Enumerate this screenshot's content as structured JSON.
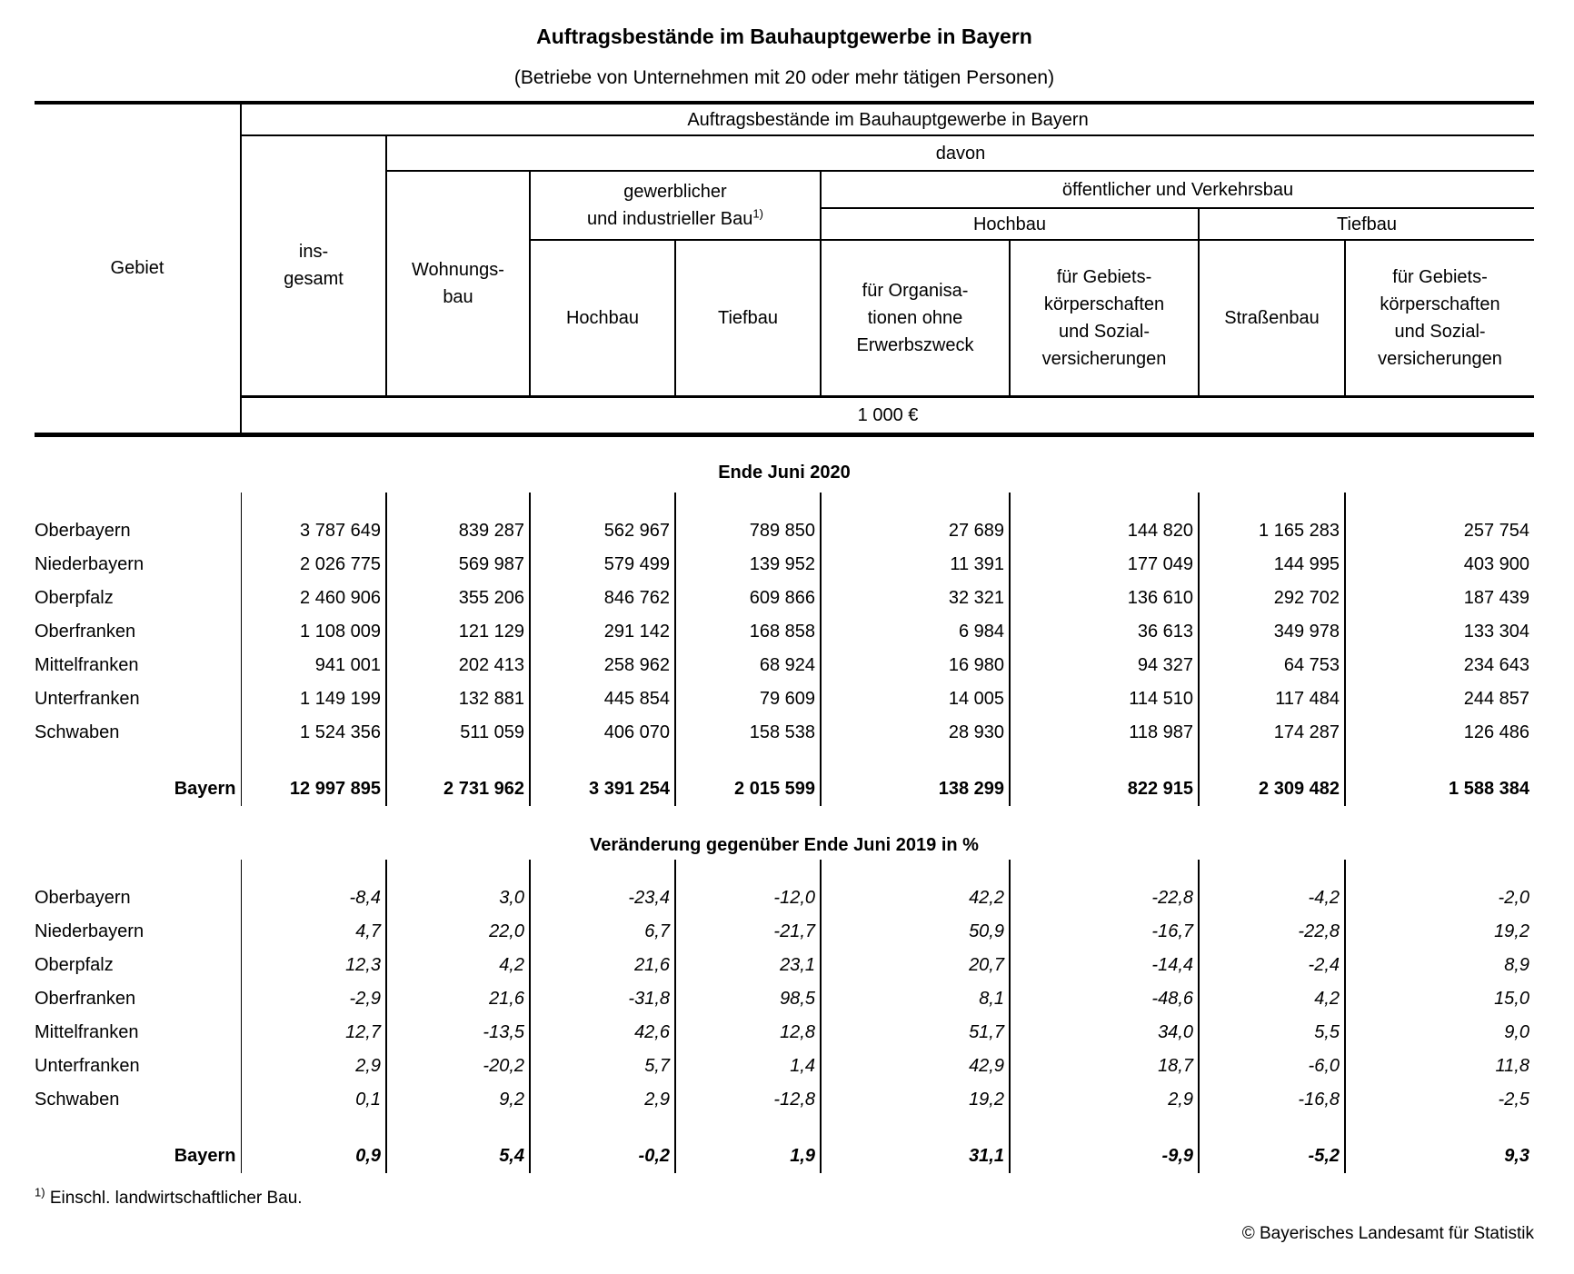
{
  "title": "Auftragsbestände im Bauhauptgewerbe in Bayern",
  "subtitle": "(Betriebe von Unternehmen mit 20 oder mehr tätigen Personen)",
  "header": {
    "gebiet": "Gebiet",
    "span_title": "Auftragsbestände im Bauhauptgewerbe in Bayern",
    "davon": "davon",
    "insgesamt": "ins-\ngesamt",
    "wohnungsbau": "Wohnungs-\nbau",
    "gewerblich": "gewerblicher\nund industrieller Bau",
    "gewerblich_footnote_marker": "1)",
    "oeffentlich": "öffentlicher und Verkehrsbau",
    "hochbau_group": "Hochbau",
    "tiefbau_group": "Tiefbau",
    "leaf_hochbau": "Hochbau",
    "leaf_tiefbau": "Tiefbau",
    "leaf_organisationen": "für Organisa-\ntionen ohne\nErwerbszweck",
    "leaf_gebietskoerperschaften_hochbau": "für Gebiets-\nkörperschaften\nund Sozial-\nversicherungen",
    "leaf_strassenbau": "Straßenbau",
    "leaf_gebietskoerperschaften_tiefbau": "für Gebiets-\nkörperschaften\nund Sozial-\nversicherungen",
    "unit": "1 000 €"
  },
  "sections": [
    {
      "title": "Ende Juni 2020",
      "value_style": "normal",
      "rows": [
        {
          "region": "Oberbayern",
          "bold": false,
          "values": [
            "3 787 649",
            "839 287",
            "562 967",
            "789 850",
            "27 689",
            "144 820",
            "1 165 283",
            "257 754"
          ]
        },
        {
          "region": "Niederbayern",
          "bold": false,
          "values": [
            "2 026 775",
            "569 987",
            "579 499",
            "139 952",
            "11 391",
            "177 049",
            "144 995",
            "403 900"
          ]
        },
        {
          "region": "Oberpfalz",
          "bold": false,
          "values": [
            "2 460 906",
            "355 206",
            "846 762",
            "609 866",
            "32 321",
            "136 610",
            "292 702",
            "187 439"
          ]
        },
        {
          "region": "Oberfranken",
          "bold": false,
          "values": [
            "1 108 009",
            "121 129",
            "291 142",
            "168 858",
            "6 984",
            "36 613",
            "349 978",
            "133 304"
          ]
        },
        {
          "region": "Mittelfranken",
          "bold": false,
          "values": [
            "941 001",
            "202 413",
            "258 962",
            "68 924",
            "16 980",
            "94 327",
            "64 753",
            "234 643"
          ]
        },
        {
          "region": "Unterfranken",
          "bold": false,
          "values": [
            "1 149 199",
            "132 881",
            "445 854",
            "79 609",
            "14 005",
            "114 510",
            "117 484",
            "244 857"
          ]
        },
        {
          "region": "Schwaben",
          "bold": false,
          "values": [
            "1 524 356",
            "511 059",
            "406 070",
            "158 538",
            "28 930",
            "118 987",
            "174 287",
            "126 486"
          ]
        },
        {
          "region": "Bayern",
          "bold": true,
          "values": [
            "12 997 895",
            "2 731 962",
            "3 391 254",
            "2 015 599",
            "138 299",
            "822 915",
            "2 309 482",
            "1 588 384"
          ]
        }
      ]
    },
    {
      "title": "Veränderung gegenüber Ende Juni 2019 in %",
      "value_style": "italic",
      "rows": [
        {
          "region": "Oberbayern",
          "bold": false,
          "values": [
            "-8,4",
            "3,0",
            "-23,4",
            "-12,0",
            "42,2",
            "-22,8",
            "-4,2",
            "-2,0"
          ]
        },
        {
          "region": "Niederbayern",
          "bold": false,
          "values": [
            "4,7",
            "22,0",
            "6,7",
            "-21,7",
            "50,9",
            "-16,7",
            "-22,8",
            "19,2"
          ]
        },
        {
          "region": "Oberpfalz",
          "bold": false,
          "values": [
            "12,3",
            "4,2",
            "21,6",
            "23,1",
            "20,7",
            "-14,4",
            "-2,4",
            "8,9"
          ]
        },
        {
          "region": "Oberfranken",
          "bold": false,
          "values": [
            "-2,9",
            "21,6",
            "-31,8",
            "98,5",
            "8,1",
            "-48,6",
            "4,2",
            "15,0"
          ]
        },
        {
          "region": "Mittelfranken",
          "bold": false,
          "values": [
            "12,7",
            "-13,5",
            "42,6",
            "12,8",
            "51,7",
            "34,0",
            "5,5",
            "9,0"
          ]
        },
        {
          "region": "Unterfranken",
          "bold": false,
          "values": [
            "2,9",
            "-20,2",
            "5,7",
            "1,4",
            "42,9",
            "18,7",
            "-6,0",
            "11,8"
          ]
        },
        {
          "region": "Schwaben",
          "bold": false,
          "values": [
            "0,1",
            "9,2",
            "2,9",
            "-12,8",
            "19,2",
            "2,9",
            "-16,8",
            "-2,5"
          ]
        },
        {
          "region": "Bayern",
          "bold": true,
          "values": [
            "0,9",
            "5,4",
            "-0,2",
            "1,9",
            "31,1",
            "-9,9",
            "-5,2",
            "9,3"
          ]
        }
      ]
    }
  ],
  "footnote": {
    "marker": "1)",
    "text": "Einschl. landwirtschaftlicher Bau."
  },
  "copyright": "© Bayerisches Landesamt für Statistik"
}
